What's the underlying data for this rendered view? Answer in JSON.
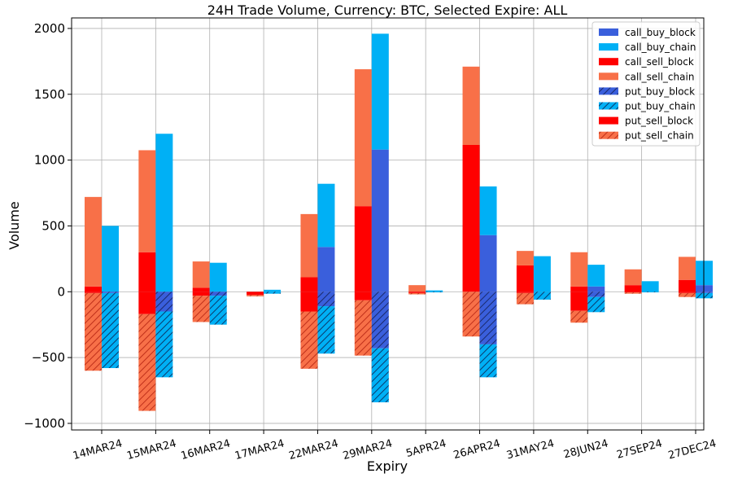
{
  "chart_data": {
    "type": "bar",
    "title": "24H Trade Volume, Currency: BTC, Selected Expire: ALL",
    "xlabel": "Expiry",
    "ylabel": "Volume",
    "ylim": [
      -1050,
      2080
    ],
    "yticks": [
      -1000,
      -500,
      0,
      500,
      1000,
      1500,
      2000
    ],
    "ytick_labels": [
      "−1000",
      "−500",
      "0",
      "500",
      "1000",
      "1500",
      "2000"
    ],
    "grid": true,
    "legend_position": "top-right",
    "categories": [
      "14MAR24",
      "15MAR24",
      "16MAR24",
      "17MAR24",
      "22MAR24",
      "29MAR24",
      "5APR24",
      "26APR24",
      "31MAY24",
      "28JUN24",
      "27SEP24",
      "27DEC24"
    ],
    "stacks": {
      "sell": [
        "call_sell_block",
        "call_sell_chain",
        "put_sell_block",
        "put_sell_chain"
      ],
      "buy": [
        "call_buy_block",
        "call_buy_chain",
        "put_buy_block",
        "put_buy_chain"
      ]
    },
    "series": [
      {
        "name": "call_buy_block",
        "color": "#3a5fdc",
        "hatch": false,
        "values": [
          0,
          0,
          0,
          0,
          340,
          1080,
          0,
          430,
          0,
          40,
          0,
          50
        ]
      },
      {
        "name": "call_buy_chain",
        "color": "#00b0f5",
        "hatch": false,
        "values": [
          500,
          1200,
          220,
          15,
          480,
          880,
          10,
          370,
          270,
          165,
          80,
          185
        ]
      },
      {
        "name": "call_sell_block",
        "color": "#ff0000",
        "hatch": false,
        "values": [
          40,
          300,
          30,
          0,
          110,
          650,
          0,
          1115,
          200,
          40,
          50,
          90
        ]
      },
      {
        "name": "call_sell_chain",
        "color": "#f87048",
        "hatch": false,
        "values": [
          680,
          775,
          200,
          0,
          480,
          1040,
          50,
          595,
          110,
          260,
          120,
          175
        ]
      },
      {
        "name": "put_buy_block",
        "color": "#3a5fdc",
        "hatch": true,
        "values": [
          -10,
          -150,
          -30,
          0,
          -110,
          -430,
          0,
          -400,
          0,
          -40,
          0,
          -10
        ]
      },
      {
        "name": "put_buy_chain",
        "color": "#00b0f5",
        "hatch": true,
        "values": [
          -570,
          -500,
          -220,
          -15,
          -360,
          -410,
          -5,
          -250,
          -60,
          -115,
          -5,
          -40
        ]
      },
      {
        "name": "put_sell_block",
        "color": "#ff0000",
        "hatch": false,
        "values": [
          -10,
          -170,
          -30,
          -25,
          -150,
          -65,
          -10,
          0,
          -10,
          -145,
          -5,
          -10
        ]
      },
      {
        "name": "put_sell_chain",
        "color": "#f87048",
        "hatch": true,
        "values": [
          -590,
          -735,
          -200,
          -10,
          -435,
          -420,
          -10,
          -340,
          -85,
          -90,
          -10,
          -30
        ]
      }
    ]
  }
}
